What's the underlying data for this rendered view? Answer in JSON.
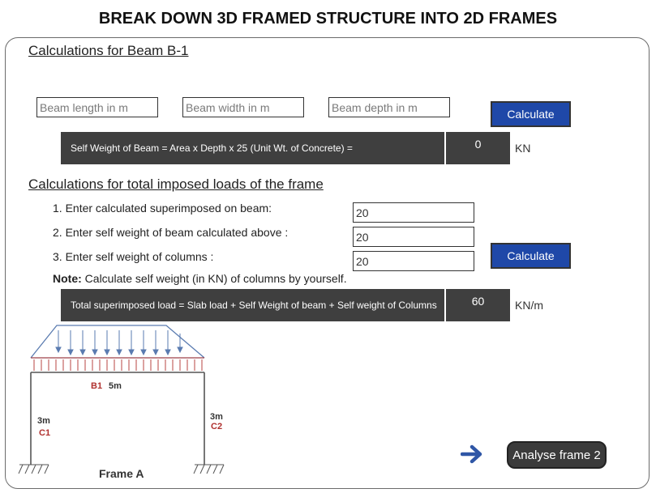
{
  "header": {
    "title": "BREAK DOWN 3D FRAMED STRUCTURE INTO 2D FRAMES"
  },
  "beam_section": {
    "heading": "Calculations for Beam B-1",
    "length_placeholder": "Beam length in m",
    "width_placeholder": "Beam width in m",
    "depth_placeholder": "Beam depth in m",
    "calculate_label": "Calculate",
    "formula": "Self Weight of Beam = Area x Depth x 25 (Unit Wt. of Concrete) =",
    "result": "0",
    "unit": "KN"
  },
  "load_section": {
    "heading": "Calculations for total imposed loads of the frame",
    "items": [
      {
        "label": "1. Enter calculated superimposed on beam:",
        "value": "20"
      },
      {
        "label": "2. Enter self weight of beam calculated above :",
        "value": "20"
      },
      {
        "label": "3. Enter self weight of columns :",
        "value": "20"
      }
    ],
    "calculate_label": "Calculate",
    "note_label": "Note:",
    "note_text": " Calculate self weight (in KN) of columns by yourself.",
    "formula": "Total superimposed load = Slab load + Self Weight of beam + Self weight of Columns",
    "result": "60",
    "unit": "KN/m"
  },
  "frame": {
    "beam_label": "B1",
    "beam_span": "5m",
    "left_height": "3m",
    "left_column": "C1",
    "right_height": "3m",
    "right_column": "C2",
    "caption": "Frame A"
  },
  "nav": {
    "next_label": "Analyse frame 2",
    "arrow_icon": "arrow-right-icon"
  },
  "colors": {
    "button_blue": "#1f48a8",
    "bar_dark": "#3f3f3f",
    "arrow_blue": "#2f56a6",
    "label_red": "#b0302e"
  }
}
